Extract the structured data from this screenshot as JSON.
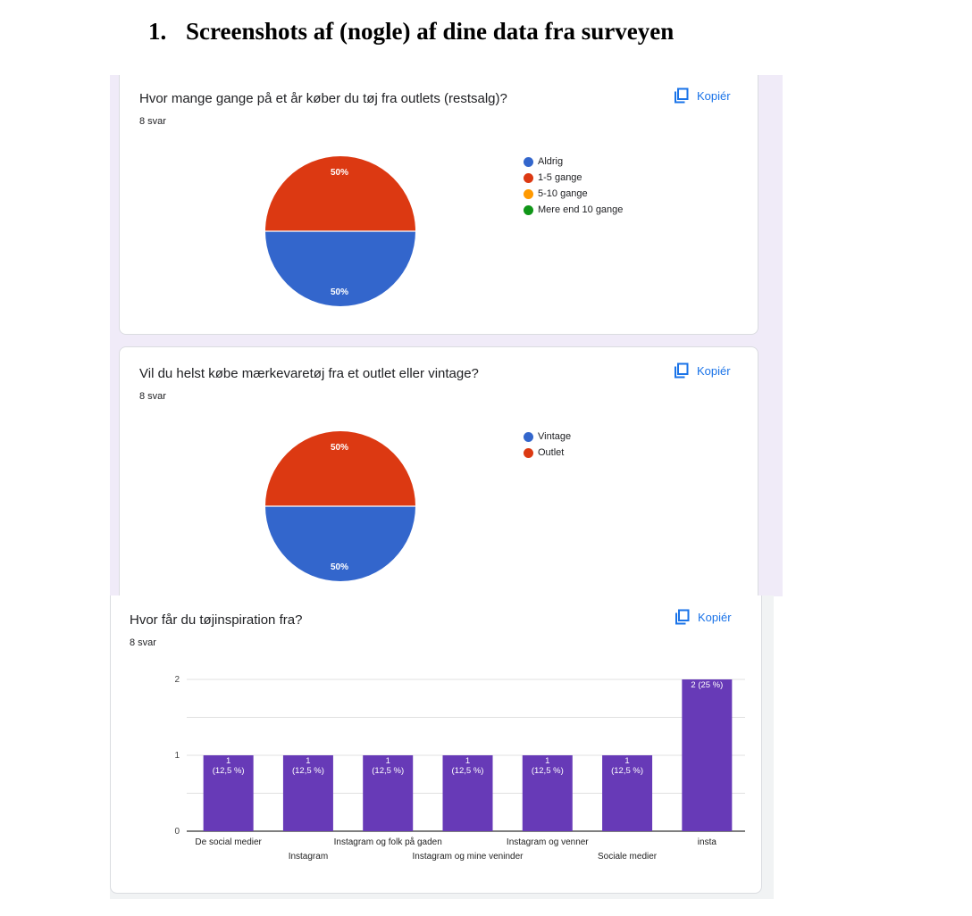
{
  "document": {
    "heading_number": "1.",
    "heading_text": "Screenshots af (nogle) af dine data fra surveyen"
  },
  "copy_label": "Kopiér",
  "q1": {
    "title": "Hvor mange gange på et år køber du tøj fra outlets (restsalg)?",
    "count": "8 svar",
    "slice_labels": {
      "top": "50%",
      "bottom": "50%"
    },
    "legend": [
      {
        "label": "Aldrig",
        "color": "#3366cc"
      },
      {
        "label": "1-5 gange",
        "color": "#dc3912"
      },
      {
        "label": "5-10 gange",
        "color": "#ff9900"
      },
      {
        "label": "Mere end 10 gange",
        "color": "#109618"
      }
    ]
  },
  "q2": {
    "title": "Vil du helst købe mærkevaretøj fra et outlet eller vintage?",
    "count": "8 svar",
    "slice_labels": {
      "top": "50%",
      "bottom": "50%"
    },
    "legend": [
      {
        "label": "Vintage",
        "color": "#3366cc"
      },
      {
        "label": "Outlet",
        "color": "#dc3912"
      }
    ]
  },
  "q3": {
    "title": "Hvor får du tøjinspiration fra?",
    "count": "8 svar"
  },
  "chart_data": [
    {
      "type": "pie",
      "categories": [
        "Aldrig",
        "1-5 gange",
        "5-10 gange",
        "Mere end 10 gange"
      ],
      "values": [
        50,
        50,
        0,
        0
      ],
      "colors": [
        "#3366cc",
        "#dc3912",
        "#ff9900",
        "#109618"
      ],
      "legend_position": "right"
    },
    {
      "type": "pie",
      "categories": [
        "Vintage",
        "Outlet"
      ],
      "values": [
        50,
        50
      ],
      "colors": [
        "#3366cc",
        "#dc3912"
      ],
      "legend_position": "right"
    },
    {
      "type": "bar",
      "categories": [
        "De social medier",
        "Instagram",
        "Instagram og folk på gaden",
        "Instagram og mine veninder",
        "Instagram og venner",
        "Sociale medier",
        "insta"
      ],
      "values": [
        1,
        1,
        1,
        1,
        1,
        1,
        2
      ],
      "value_labels": [
        [
          "1",
          "(12,5 %)"
        ],
        [
          "1",
          "(12,5 %)"
        ],
        [
          "1",
          "(12,5 %)"
        ],
        [
          "1",
          "(12,5 %)"
        ],
        [
          "1",
          "(12,5 %)"
        ],
        [
          "1",
          "(12,5 %)"
        ],
        [
          "2 (25 %)"
        ]
      ],
      "y_ticks": [
        "0",
        "1",
        "2"
      ],
      "ylim": [
        0,
        2
      ],
      "bar_color": "#673ab7",
      "grid": true
    }
  ]
}
